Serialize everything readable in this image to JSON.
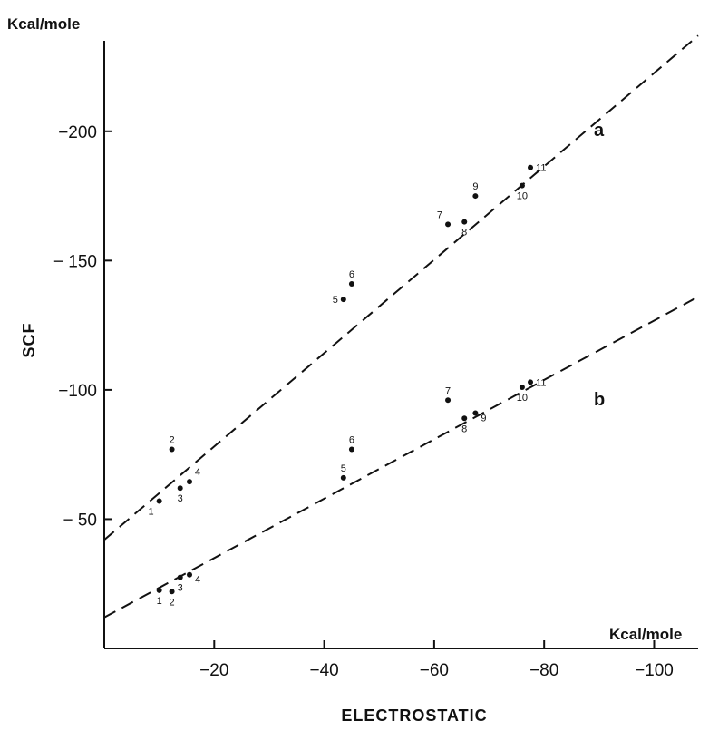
{
  "chart_data": {
    "type": "scatter",
    "xlabel": "ELECTROSTATIC",
    "ylabel": "SCF",
    "x_unit": "Kcal/mole",
    "y_unit": "Kcal/mole",
    "xlim": [
      0,
      -108
    ],
    "ylim": [
      0,
      -235
    ],
    "x_ticks": [
      {
        "value": -20,
        "label": "−20"
      },
      {
        "value": -40,
        "label": "−40"
      },
      {
        "value": -60,
        "label": "−60"
      },
      {
        "value": -80,
        "label": "−80"
      },
      {
        "value": -100,
        "label": "−100"
      }
    ],
    "y_ticks": [
      {
        "value": -50,
        "label": "− 50"
      },
      {
        "value": -100,
        "label": "−100"
      },
      {
        "value": -150,
        "label": "− 150"
      },
      {
        "value": -200,
        "label": "−200"
      }
    ],
    "grid": false,
    "series": [
      {
        "name": "a",
        "points": [
          {
            "label": "1",
            "x": -10,
            "y": -57
          },
          {
            "label": "2",
            "x": -12.3,
            "y": -77
          },
          {
            "label": "3",
            "x": -13.8,
            "y": -62
          },
          {
            "label": "4",
            "x": -15.5,
            "y": -64.5
          },
          {
            "label": "5",
            "x": -43.5,
            "y": -135
          },
          {
            "label": "6",
            "x": -45,
            "y": -141
          },
          {
            "label": "7",
            "x": -62.5,
            "y": -164
          },
          {
            "label": "8",
            "x": -65.5,
            "y": -165
          },
          {
            "label": "9",
            "x": -67.5,
            "y": -175
          },
          {
            "label": "10",
            "x": -76,
            "y": -179
          },
          {
            "label": "11",
            "x": -77.5,
            "y": -186
          }
        ],
        "fit_line": {
          "x": [
            0,
            -108
          ],
          "y": [
            -42,
            -237
          ]
        }
      },
      {
        "name": "b",
        "points": [
          {
            "label": "1",
            "x": -10,
            "y": -22.5
          },
          {
            "label": "2",
            "x": -12.3,
            "y": -22
          },
          {
            "label": "3",
            "x": -13.8,
            "y": -27.5
          },
          {
            "label": "4",
            "x": -15.5,
            "y": -28.5
          },
          {
            "label": "5",
            "x": -43.5,
            "y": -66
          },
          {
            "label": "6",
            "x": -45,
            "y": -77
          },
          {
            "label": "7",
            "x": -62.5,
            "y": -96
          },
          {
            "label": "8",
            "x": -65.5,
            "y": -89
          },
          {
            "label": "9",
            "x": -67.5,
            "y": -91
          },
          {
            "label": "10",
            "x": -76,
            "y": -101
          },
          {
            "label": "11",
            "x": -77.5,
            "y": -103
          }
        ],
        "fit_line": {
          "x": [
            0,
            -108
          ],
          "y": [
            -12,
            -136
          ]
        }
      }
    ]
  }
}
